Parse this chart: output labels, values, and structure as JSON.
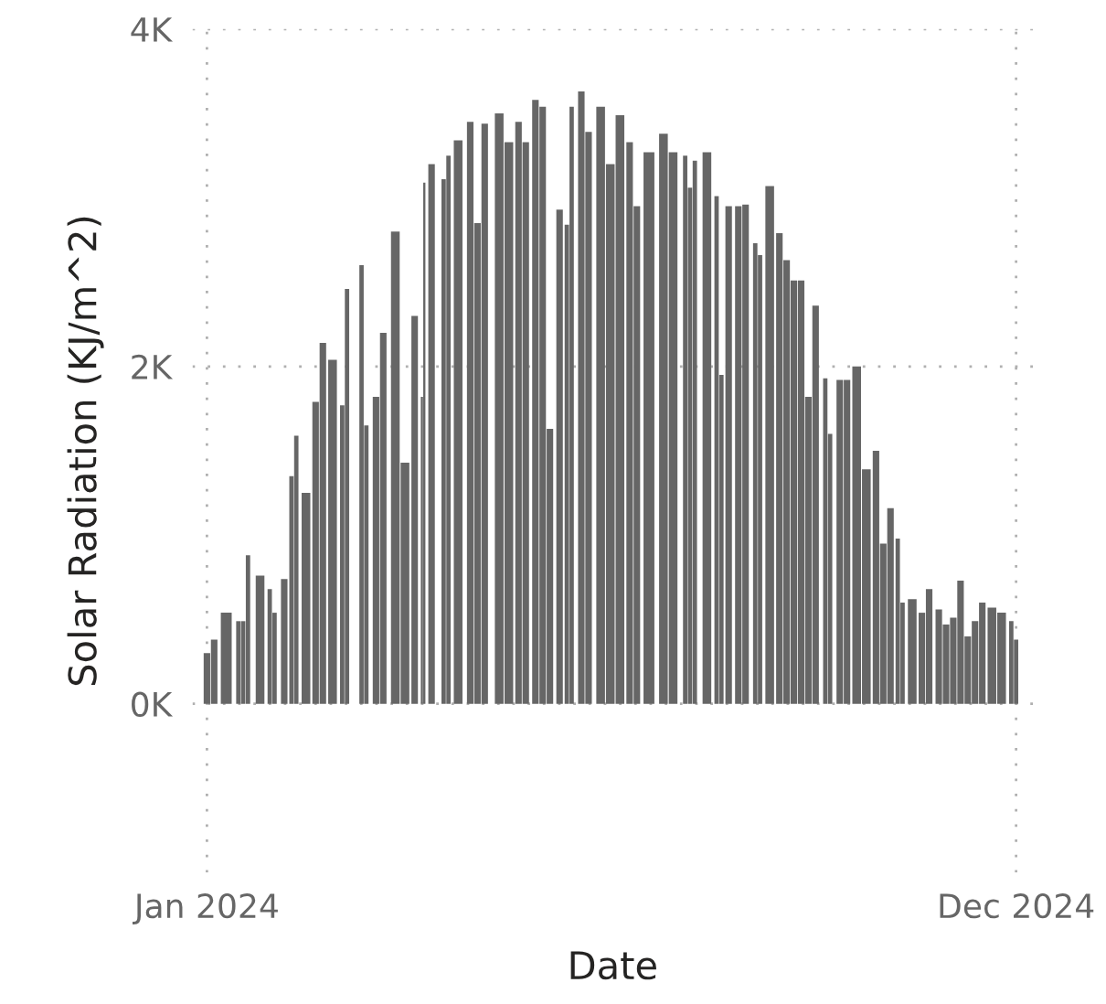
{
  "chart_data": {
    "type": "bar",
    "xlabel": "Date",
    "ylabel": "Solar Radiation (KJ/m^2)",
    "color": "#666666",
    "x": [
      "2024-01-01",
      "2024-01-04",
      "2024-01-09",
      "2024-01-14",
      "2024-01-16",
      "2024-01-18",
      "2024-01-23",
      "2024-01-27",
      "2024-01-29",
      "2024-02-02",
      "2024-02-05",
      "2024-02-07",
      "2024-02-11",
      "2024-02-15",
      "2024-02-18",
      "2024-02-22",
      "2024-02-26",
      "2024-02-28",
      "2024-03-05",
      "2024-03-07",
      "2024-03-11",
      "2024-03-14",
      "2024-03-19",
      "2024-03-23",
      "2024-03-27",
      "2024-03-30",
      "2024-03-31",
      "2024-04-03",
      "2024-04-08",
      "2024-04-10",
      "2024-04-14",
      "2024-04-19",
      "2024-04-22",
      "2024-04-25",
      "2024-05-01",
      "2024-05-05",
      "2024-05-09",
      "2024-05-12",
      "2024-05-16",
      "2024-05-19",
      "2024-05-22",
      "2024-05-26",
      "2024-05-29",
      "2024-05-31",
      "2024-06-04",
      "2024-06-07",
      "2024-06-12",
      "2024-06-16",
      "2024-06-20",
      "2024-06-24",
      "2024-06-27",
      "2024-07-02",
      "2024-07-08",
      "2024-07-12",
      "2024-07-17",
      "2024-07-19",
      "2024-07-21",
      "2024-07-26",
      "2024-07-30",
      "2024-08-01",
      "2024-08-04",
      "2024-08-08",
      "2024-08-11",
      "2024-08-15",
      "2024-08-17",
      "2024-08-21",
      "2024-08-25",
      "2024-08-28",
      "2024-08-31",
      "2024-09-03",
      "2024-09-06",
      "2024-09-09",
      "2024-09-13",
      "2024-09-15",
      "2024-09-19",
      "2024-09-22",
      "2024-09-26",
      "2024-09-30",
      "2024-10-04",
      "2024-10-07",
      "2024-10-10",
      "2024-10-13",
      "2024-10-15",
      "2024-10-19",
      "2024-10-23",
      "2024-10-26",
      "2024-10-30",
      "2024-11-02",
      "2024-11-05",
      "2024-11-08",
      "2024-11-11",
      "2024-11-14",
      "2024-11-17",
      "2024-11-21",
      "2024-11-25",
      "2024-11-29",
      "2024-12-01"
    ],
    "values": [
      300,
      380,
      540,
      490,
      490,
      880,
      760,
      680,
      540,
      740,
      1350,
      1590,
      1250,
      1790,
      2140,
      2040,
      1770,
      2460,
      2600,
      1650,
      1820,
      2200,
      2800,
      1430,
      2300,
      1820,
      3090,
      3200,
      3110,
      3250,
      3340,
      3450,
      2850,
      3440,
      3500,
      3330,
      3450,
      3330,
      3580,
      3540,
      1630,
      2930,
      2840,
      3540,
      3630,
      3390,
      3540,
      3200,
      3490,
      3330,
      2950,
      3270,
      3380,
      3270,
      3250,
      3060,
      3220,
      3270,
      3010,
      1950,
      2950,
      2950,
      2960,
      2730,
      2660,
      3070,
      2790,
      2630,
      2510,
      2510,
      1820,
      2360,
      1930,
      1600,
      1920,
      1920,
      2000,
      1390,
      1500,
      950,
      1160,
      980,
      600,
      620,
      540,
      680,
      560,
      470,
      510,
      730,
      400,
      490,
      600,
      570,
      540,
      490,
      380
    ],
    "xlim": [
      "2023-12-26",
      "2024-12-08"
    ],
    "xticks": [
      {
        "value": "2024-01-01",
        "label": "Jan 2024"
      },
      {
        "value": "2024-12-01",
        "label": "Dec 2024"
      }
    ],
    "ylim": [
      -1000,
      4000
    ],
    "yticks": [
      {
        "value": 0,
        "label": "0K"
      },
      {
        "value": 2000,
        "label": "2K"
      },
      {
        "value": 4000,
        "label": "4K"
      }
    ],
    "grid": true
  }
}
